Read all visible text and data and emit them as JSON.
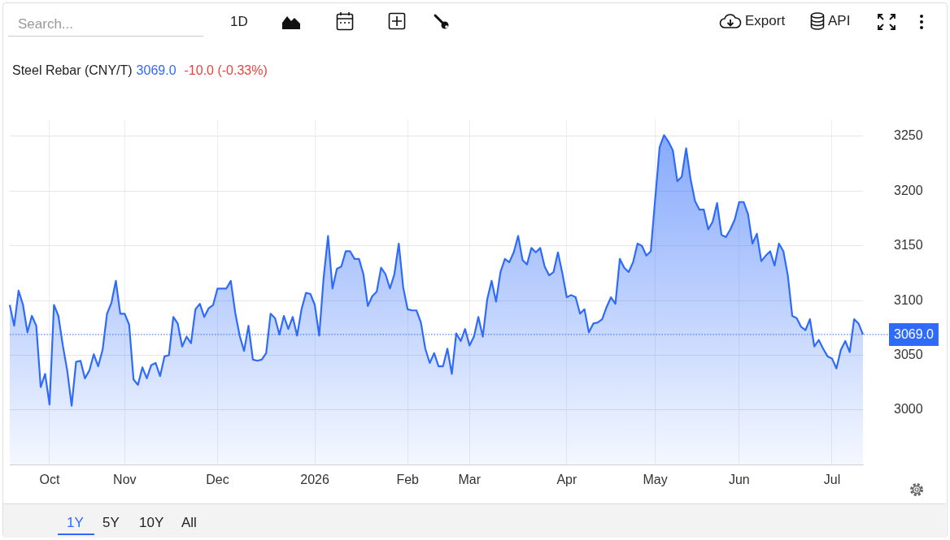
{
  "chart_data": {
    "type": "area",
    "title": "Steel Rebar (CNY/T)",
    "annotations": [
      "3069.0",
      "-10.0 (-0.33%)",
      "Search...",
      "1D",
      "Export",
      "API",
      "1Y",
      "5Y",
      "10Y",
      "All"
    ],
    "categories": [
      null,
      null,
      null,
      null,
      null,
      null,
      null,
      null,
      null,
      "Oct",
      null,
      null,
      null,
      null,
      null,
      null,
      null,
      null,
      null,
      null,
      null,
      null,
      null,
      null,
      null,
      null,
      "Nov",
      null,
      null,
      null,
      null,
      null,
      null,
      null,
      null,
      null,
      null,
      null,
      null,
      null,
      null,
      null,
      null,
      null,
      null,
      null,
      null,
      "Dec",
      null,
      null,
      null,
      null,
      null,
      null,
      null,
      null,
      null,
      null,
      null,
      null,
      null,
      null,
      null,
      null,
      null,
      null,
      null,
      null,
      null,
      "2026",
      null,
      null,
      null,
      null,
      null,
      null,
      null,
      null,
      null,
      null,
      null,
      null,
      null,
      null,
      null,
      null,
      null,
      null,
      null,
      null,
      "Feb",
      null,
      null,
      null,
      null,
      null,
      null,
      null,
      null,
      null,
      null,
      null,
      null,
      null,
      "Mar",
      null,
      null,
      null,
      null,
      null,
      null,
      null,
      null,
      null,
      null,
      null,
      null,
      null,
      null,
      null,
      null,
      null,
      null,
      null,
      null,
      null,
      "Apr",
      null,
      null,
      null,
      null,
      null,
      null,
      null,
      null,
      null,
      null,
      null,
      null,
      null,
      null,
      null,
      null,
      null,
      null,
      null,
      "May",
      null,
      null,
      null,
      null,
      null,
      null,
      null,
      null,
      null,
      null,
      null,
      null,
      null,
      null,
      null,
      null,
      null,
      null,
      "Jun",
      null,
      null,
      null,
      null,
      null,
      null,
      null,
      null,
      null,
      null,
      null,
      null,
      null,
      null,
      null,
      null,
      null,
      null,
      null,
      null,
      "Jul",
      null,
      null,
      null,
      null,
      null,
      null,
      null
    ],
    "series": [
      {
        "color": "#2e6bfa",
        "values": [
          3096,
          3077,
          3109,
          3096,
          3071,
          3086,
          3077,
          3021,
          3033,
          3005,
          3096,
          3086,
          3059,
          3036,
          3004,
          3044,
          3045,
          3029,
          3036,
          3051,
          3040,
          3055,
          3088,
          3098,
          3118,
          3088,
          3088,
          3078,
          3028,
          3023,
          3039,
          3029,
          3041,
          3043,
          3031,
          3049,
          3050,
          3085,
          3079,
          3058,
          3067,
          3061,
          3092,
          3097,
          3085,
          3093,
          3096,
          3111,
          3111,
          3111,
          3118,
          3089,
          3068,
          3054,
          3077,
          3046,
          3045,
          3046,
          3052,
          3088,
          3084,
          3069,
          3086,
          3074,
          3085,
          3068,
          3092,
          3107,
          3106,
          3096,
          3068,
          3121,
          3159,
          3111,
          3129,
          3131,
          3145,
          3145,
          3138,
          3138,
          3124,
          3095,
          3104,
          3108,
          3130,
          3124,
          3111,
          3124,
          3152,
          3112,
          3092,
          3091,
          3091,
          3080,
          3056,
          3043,
          3052,
          3040,
          3040,
          3056,
          3033,
          3070,
          3063,
          3074,
          3059,
          3067,
          3085,
          3067,
          3101,
          3118,
          3099,
          3126,
          3138,
          3135,
          3144,
          3159,
          3137,
          3133,
          3148,
          3144,
          3148,
          3131,
          3123,
          3126,
          3144,
          3125,
          3103,
          3105,
          3103,
          3088,
          3092,
          3071,
          3079,
          3080,
          3083,
          3094,
          3103,
          3097,
          3138,
          3130,
          3126,
          3135,
          3152,
          3150,
          3141,
          3145,
          3193,
          3240,
          3251,
          3245,
          3237,
          3209,
          3213,
          3239,
          3211,
          3191,
          3183,
          3183,
          3165,
          3172,
          3189,
          3160,
          3158,
          3165,
          3174,
          3190,
          3190,
          3179,
          3152,
          3161,
          3136,
          3141,
          3145,
          3132,
          3152,
          3145,
          3123,
          3086,
          3084,
          3076,
          3073,
          3083,
          3058,
          3064,
          3056,
          3049,
          3047,
          3038,
          3055,
          3063,
          3053,
          3083,
          3079,
          3069
        ]
      }
    ],
    "ylim": [
      2950,
      3265
    ],
    "yticks": [
      3000,
      3050,
      3100,
      3150,
      3200,
      3250
    ],
    "ref_lines": [
      {
        "axis": "y",
        "value": 3069,
        "label": "3069.0",
        "color": "#2e6bfa",
        "line_style": "dotted"
      }
    ],
    "grid": true,
    "legend": false,
    "marker": "none",
    "line_style": "solid"
  }
}
